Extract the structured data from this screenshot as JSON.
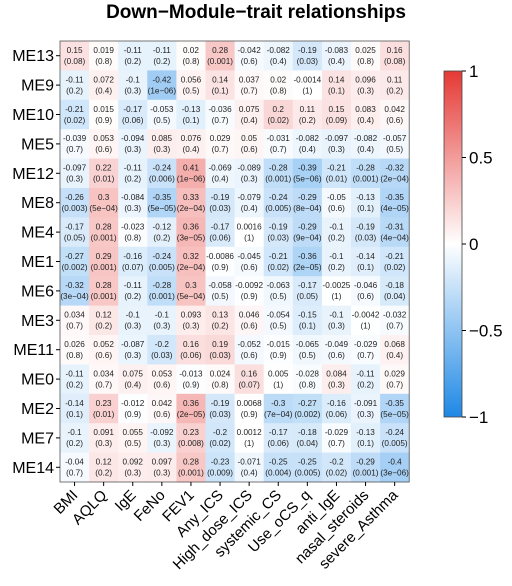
{
  "chart_data": {
    "type": "heatmap",
    "title": "Down−Module−trait relationships",
    "rows": [
      "ME13",
      "ME9",
      "ME10",
      "ME5",
      "ME12",
      "ME8",
      "ME4",
      "ME1",
      "ME6",
      "ME3",
      "ME11",
      "ME0",
      "ME2",
      "ME7",
      "ME14"
    ],
    "columns": [
      "BMI",
      "AQLQ",
      "IgE",
      "FeNo",
      "FEV1",
      "Any_ICS",
      "High_dose_ICS",
      "systemic_CS",
      "Use_oCS_q",
      "anti_IgE",
      "nasal_steroids",
      "severe_Asthma"
    ],
    "correlation": [
      [
        0.15,
        0.019,
        -0.11,
        -0.11,
        0.02,
        0.28,
        -0.042,
        -0.082,
        -0.19,
        -0.083,
        0.025,
        0.16
      ],
      [
        -0.11,
        0.072,
        -0.1,
        -0.42,
        0.056,
        0.14,
        0.037,
        0.02,
        -0.0014,
        0.14,
        0.096,
        0.11
      ],
      [
        -0.21,
        0.015,
        -0.17,
        -0.053,
        -0.13,
        -0.036,
        0.075,
        0.2,
        0.11,
        0.15,
        0.083,
        0.042
      ],
      [
        -0.039,
        0.053,
        -0.094,
        0.085,
        0.076,
        0.029,
        0.05,
        -0.031,
        -0.082,
        -0.097,
        -0.082,
        -0.057
      ],
      [
        -0.097,
        0.22,
        -0.11,
        -0.24,
        0.41,
        -0.069,
        -0.089,
        -0.28,
        -0.39,
        -0.21,
        -0.28,
        -0.32
      ],
      [
        -0.26,
        0.3,
        -0.084,
        -0.35,
        0.33,
        -0.19,
        -0.079,
        -0.24,
        -0.29,
        -0.05,
        -0.13,
        -0.35
      ],
      [
        -0.17,
        0.28,
        -0.023,
        -0.12,
        0.36,
        -0.17,
        0.0016,
        -0.19,
        -0.29,
        -0.1,
        -0.19,
        -0.31
      ],
      [
        -0.27,
        0.29,
        -0.16,
        -0.24,
        0.32,
        -0.0086,
        -0.045,
        -0.21,
        -0.36,
        -0.1,
        -0.14,
        -0.21
      ],
      [
        -0.32,
        0.28,
        -0.11,
        -0.28,
        0.3,
        -0.058,
        -0.0092,
        -0.063,
        -0.17,
        -0.0025,
        -0.046,
        -0.18
      ],
      [
        0.034,
        0.12,
        -0.1,
        -0.1,
        0.093,
        0.13,
        0.046,
        -0.054,
        -0.15,
        -0.1,
        -0.0042,
        -0.032
      ],
      [
        0.026,
        0.052,
        -0.087,
        -0.2,
        0.16,
        0.19,
        -0.052,
        -0.015,
        -0.065,
        -0.049,
        -0.029,
        0.068
      ],
      [
        -0.11,
        0.034,
        0.075,
        0.053,
        -0.013,
        0.024,
        0.16,
        0.005,
        -0.028,
        0.084,
        -0.11,
        0.029
      ],
      [
        -0.14,
        0.23,
        -0.012,
        0.042,
        0.36,
        -0.19,
        0.0068,
        -0.3,
        -0.27,
        -0.16,
        -0.091,
        -0.35
      ],
      [
        -0.1,
        0.091,
        0.055,
        -0.092,
        0.23,
        -0.2,
        0.0012,
        -0.17,
        -0.18,
        -0.029,
        -0.13,
        -0.24
      ],
      [
        -0.04,
        0.12,
        0.092,
        0.097,
        0.28,
        -0.23,
        -0.071,
        -0.25,
        -0.25,
        -0.2,
        -0.29,
        -0.4
      ]
    ],
    "pvalue": [
      [
        "(0.08)",
        "(0.8)",
        "(0.2)",
        "(0.2)",
        "(0.8)",
        "(0.001)",
        "(0.6)",
        "(0.4)",
        "(0.03)",
        "(0.4)",
        "(0.8)",
        "(0.08)"
      ],
      [
        "(0.2)",
        "(0.4)",
        "(0.3)",
        "(1e−06)",
        "(0.5)",
        "(0.1)",
        "(0.7)",
        "(0.8)",
        "(1)",
        "(0.1)",
        "(0.3)",
        "(0.2)"
      ],
      [
        "(0.02)",
        "(0.9)",
        "(0.06)",
        "(0.5)",
        "(0.1)",
        "(0.7)",
        "(0.4)",
        "(0.02)",
        "(0.2)",
        "(0.09)",
        "(0.4)",
        "(0.6)"
      ],
      [
        "(0.7)",
        "(0.6)",
        "(0.3)",
        "(0.3)",
        "(0.4)",
        "(0.7)",
        "(0.6)",
        "(0.7)",
        "(0.4)",
        "(0.3)",
        "(0.4)",
        "(0.5)"
      ],
      [
        "(0.3)",
        "(0.01)",
        "(0.2)",
        "(0.006)",
        "(1e−06)",
        "(0.4)",
        "(0.3)",
        "(0.001)",
        "(5e−06)",
        "(0.01)",
        "(0.001)",
        "(2e−04)"
      ],
      [
        "(0.003)",
        "(5e−04)",
        "(0.3)",
        "(5e−05)",
        "(2e−04)",
        "(0.03)",
        "(0.4)",
        "(0.005)",
        "(8e−04)",
        "(0.6)",
        "(0.1)",
        "(4e−05)"
      ],
      [
        "(0.05)",
        "(0.001)",
        "(0.8)",
        "(0.2)",
        "(3e−05)",
        "(0.06)",
        "(1)",
        "(0.03)",
        "(9e−04)",
        "(0.2)",
        "(0.03)",
        "(4e−04)"
      ],
      [
        "(0.002)",
        "(0.001)",
        "(0.07)",
        "(0.005)",
        "(2e−04)",
        "(0.9)",
        "(0.6)",
        "(0.02)",
        "(2e−05)",
        "(0.2)",
        "(0.1)",
        "(0.02)"
      ],
      [
        "(3e−04)",
        "(0.001)",
        "(0.2)",
        "(0.001)",
        "(5e−04)",
        "(0.5)",
        "(0.9)",
        "(0.5)",
        "(0.05)",
        "(1)",
        "(0.6)",
        "(0.04)"
      ],
      [
        "(0.7)",
        "(0.2)",
        "(0.3)",
        "(0.3)",
        "(0.3)",
        "(0.2)",
        "(0.6)",
        "(0.5)",
        "(0.1)",
        "(0.3)",
        "(1)",
        "(0.7)"
      ],
      [
        "(0.8)",
        "(0.6)",
        "(0.3)",
        "(0.03)",
        "(0.06)",
        "(0.03)",
        "(0.6)",
        "(0.9)",
        "(0.5)",
        "(0.6)",
        "(0.7)",
        "(0.4)"
      ],
      [
        "(0.2)",
        "(0.7)",
        "(0.4)",
        "(0.6)",
        "(0.9)",
        "(0.8)",
        "(0.07)",
        "(1)",
        "(0.8)",
        "(0.3)",
        "(0.2)",
        "(0.7)"
      ],
      [
        "(0.1)",
        "(0.01)",
        "(0.9)",
        "(0.6)",
        "(2e−05)",
        "(0.03)",
        "(0.9)",
        "(7e−04)",
        "(0.002)",
        "(0.06)",
        "(0.3)",
        "(5e−05)"
      ],
      [
        "(0.2)",
        "(0.3)",
        "(0.5)",
        "(0.3)",
        "(0.008)",
        "(0.02)",
        "(1)",
        "(0.06)",
        "(0.04)",
        "(0.7)",
        "(0.1)",
        "(0.005)"
      ],
      [
        "(0.7)",
        "(0.2)",
        "(0.3)",
        "(0.3)",
        "(0.001)",
        "(0.009)",
        "(0.4)",
        "(0.004)",
        "(0.005)",
        "(0.02)",
        "(0.001)",
        "(3e−06)"
      ]
    ],
    "colorbar": {
      "ticks": [
        -1,
        -0.5,
        0,
        0.5,
        1
      ],
      "range": [
        -1,
        1
      ],
      "low_color": "#1e88e5",
      "mid_color": "#ffffff",
      "high_color": "#e53935"
    }
  }
}
